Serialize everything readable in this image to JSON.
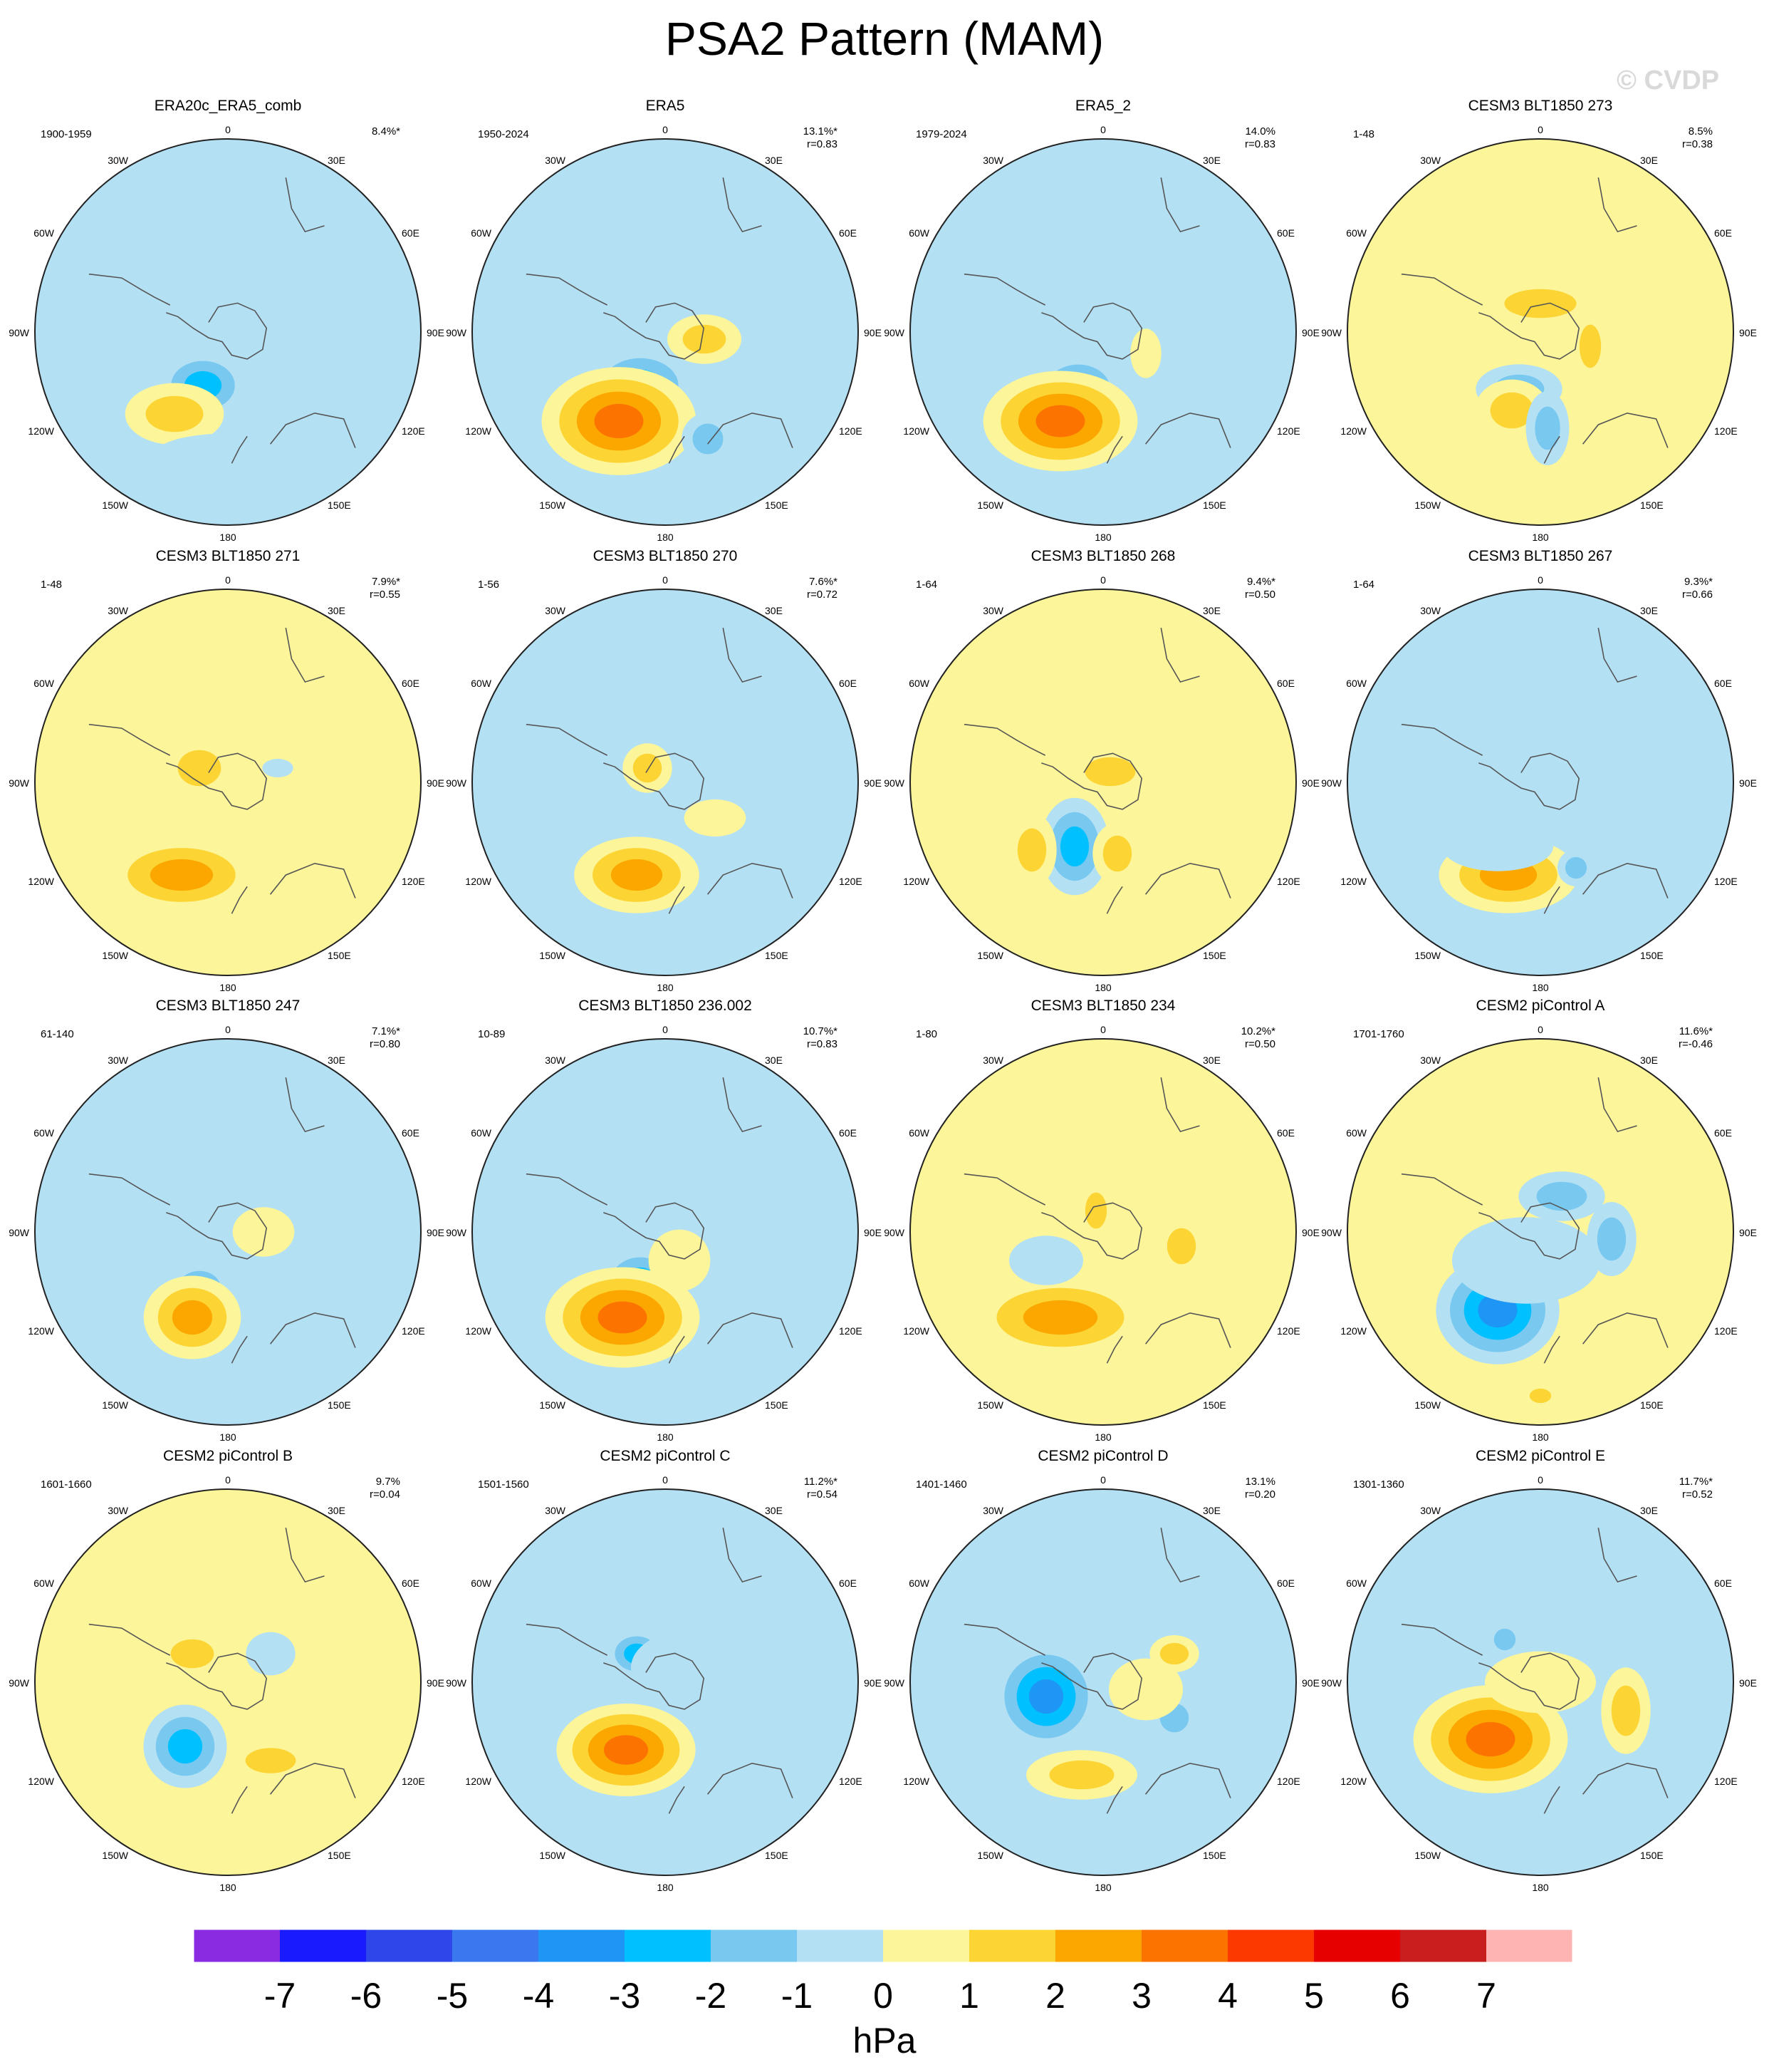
{
  "title": "PSA2 Pattern (MAM)",
  "watermark": "© CVDP",
  "colorbar": {
    "unit": "hPa",
    "tick_labels": [
      "-7",
      "-6",
      "-5",
      "-4",
      "-3",
      "-2",
      "-1",
      "0",
      "1",
      "2",
      "3",
      "4",
      "5",
      "6",
      "7"
    ],
    "colors": [
      "#8a2be2",
      "#1a1aff",
      "#2f47e8",
      "#3a78f0",
      "#1e96f5",
      "#00c0ff",
      "#78c8f0",
      "#b4e0f4",
      "#fcf59a",
      "#fcd535",
      "#fca700",
      "#fc7300",
      "#fc3a00",
      "#e60000",
      "#c81e1e",
      "#ffb4b4"
    ]
  },
  "map_labels": {
    "top": "0",
    "bottom": "180",
    "left": "90W",
    "right": "90E",
    "ul1": "30W",
    "ul2": "60W",
    "ur1": "30E",
    "ur2": "60E",
    "ll1": "120W",
    "ll2": "150W",
    "lr1": "120E",
    "lr2": "150E"
  },
  "chart_data": [
    {
      "type": "heatmap",
      "title": "ERA20c_ERA5_comb",
      "period": "1900-1959",
      "pct": "8.4%*",
      "r": "",
      "blobs": [
        [
          -35,
          -75,
          0.13,
          0.1,
          1.8,
          -3
        ],
        [
          -75,
          -115,
          0.16,
          0.1,
          1.6,
          2
        ],
        [
          75,
          -20,
          0.06,
          0.04,
          1.6,
          -1
        ],
        [
          0,
          -170,
          0.22,
          0.06,
          1.7,
          -1
        ]
      ],
      "base": -1
    },
    {
      "type": "heatmap",
      "title": "ERA5",
      "period": "1950-2024",
      "pct": "13.1%*",
      "r": "r=0.83",
      "blobs": [
        [
          -35,
          -75,
          0.14,
          0.1,
          2.0,
          -3
        ],
        [
          -65,
          -125,
          0.2,
          0.14,
          2.0,
          4
        ],
        [
          55,
          -10,
          0.12,
          0.08,
          1.6,
          2
        ],
        [
          60,
          -150,
          0.08,
          0.08,
          1.7,
          -2
        ]
      ],
      "base": -1
    },
    {
      "type": "heatmap",
      "title": "ERA5_2",
      "period": "1979-2024",
      "pct": "14.0%",
      "r": "r=0.83",
      "blobs": [
        [
          -35,
          -80,
          0.13,
          0.1,
          1.8,
          -3
        ],
        [
          -60,
          -125,
          0.2,
          0.13,
          2.0,
          4
        ],
        [
          60,
          -30,
          0.05,
          0.08,
          1.6,
          1
        ]
      ],
      "base": -1
    },
    {
      "type": "heatmap",
      "title": "CESM3 BLT1850 273",
      "period": "1-48",
      "pct": "8.5%",
      "r": "r=0.38",
      "blobs": [
        [
          0,
          40,
          0.2,
          0.08,
          1.6,
          2
        ],
        [
          -30,
          -80,
          0.14,
          0.08,
          1.6,
          -2
        ],
        [
          -40,
          -110,
          0.12,
          0.1,
          1.6,
          2
        ],
        [
          10,
          -135,
          0.07,
          0.12,
          1.6,
          -2
        ],
        [
          70,
          -20,
          0.06,
          0.12,
          1.6,
          2
        ]
      ],
      "base": 0
    },
    {
      "type": "heatmap",
      "title": "CESM3 BLT1850 271",
      "period": "1-48",
      "pct": "7.9%*",
      "r": "r=0.55",
      "blobs": [
        [
          -40,
          20,
          0.12,
          0.1,
          1.6,
          2
        ],
        [
          -65,
          -130,
          0.22,
          0.11,
          1.8,
          3
        ],
        [
          70,
          20,
          0.05,
          0.03,
          1.6,
          -1
        ]
      ],
      "base": 0
    },
    {
      "type": "heatmap",
      "title": "CESM3 BLT1850 270",
      "period": "1-56",
      "pct": "7.6%*",
      "r": "r=0.72",
      "blobs": [
        [
          -25,
          20,
          0.08,
          0.08,
          1.6,
          2
        ],
        [
          -30,
          -100,
          0.07,
          0.07,
          1.6,
          -2
        ],
        [
          -40,
          -130,
          0.18,
          0.11,
          1.8,
          3
        ],
        [
          70,
          -50,
          0.1,
          0.06,
          1.6,
          1
        ]
      ],
      "base": -1
    },
    {
      "type": "heatmap",
      "title": "CESM3 BLT1850 268",
      "period": "1-64",
      "pct": "9.4%*",
      "r": "r=0.50",
      "blobs": [
        [
          -40,
          -90,
          0.1,
          0.14,
          1.8,
          -3
        ],
        [
          -100,
          -95,
          0.08,
          0.12,
          1.6,
          2
        ],
        [
          10,
          15,
          0.14,
          0.08,
          1.6,
          2
        ],
        [
          20,
          -100,
          0.08,
          0.1,
          1.6,
          2
        ]
      ],
      "base": 0
    },
    {
      "type": "heatmap",
      "title": "CESM3 BLT1850 267",
      "period": "1-64",
      "pct": "9.3%*",
      "r": "r=0.66",
      "blobs": [
        [
          -45,
          -130,
          0.2,
          0.11,
          1.8,
          3
        ],
        [
          50,
          -120,
          0.06,
          0.06,
          1.6,
          -2
        ],
        [
          -60,
          -90,
          0.18,
          0.08,
          1.6,
          -1
        ]
      ],
      "base": -1
    },
    {
      "type": "heatmap",
      "title": "CESM3 BLT1850 247",
      "period": "61-140",
      "pct": "7.1%*",
      "r": "r=0.80",
      "blobs": [
        [
          -40,
          -80,
          0.12,
          0.1,
          1.6,
          -2
        ],
        [
          -50,
          -120,
          0.14,
          0.12,
          1.8,
          3
        ],
        [
          50,
          0,
          0.1,
          0.08,
          1.6,
          1
        ]
      ],
      "base": -1
    },
    {
      "type": "heatmap",
      "title": "CESM3 BLT1850 236.002",
      "period": "10-89",
      "pct": "10.7%*",
      "r": "r=0.83",
      "blobs": [
        [
          -35,
          -70,
          0.12,
          0.1,
          1.8,
          -3
        ],
        [
          -60,
          -120,
          0.2,
          0.13,
          2.0,
          4
        ],
        [
          20,
          -40,
          0.1,
          0.1,
          1.6,
          1
        ]
      ],
      "base": -1
    },
    {
      "type": "heatmap",
      "title": "CESM3 BLT1850 234",
      "period": "1-80",
      "pct": "10.2%*",
      "r": "r=0.50",
      "blobs": [
        [
          -60,
          -120,
          0.26,
          0.12,
          1.8,
          3
        ],
        [
          60,
          -10,
          0.12,
          0.08,
          1.6,
          1
        ],
        [
          110,
          -20,
          0.08,
          0.1,
          1.6,
          2
        ],
        [
          -10,
          30,
          0.06,
          0.1,
          1.6,
          2
        ],
        [
          -80,
          -40,
          0.12,
          0.08,
          1.6,
          -1
        ]
      ],
      "base": 0
    },
    {
      "type": "heatmap",
      "title": "CESM2 piControl A",
      "period": "1701-1760",
      "pct": "11.6%*",
      "r": "r=-0.46",
      "blobs": [
        [
          -60,
          -110,
          0.16,
          0.14,
          2.0,
          -4
        ],
        [
          100,
          -10,
          0.08,
          0.12,
          1.6,
          -2
        ],
        [
          30,
          50,
          0.14,
          0.08,
          1.6,
          -2
        ],
        [
          0,
          -230,
          0.06,
          0.04,
          1.6,
          2
        ],
        [
          -20,
          -40,
          0.24,
          0.14,
          1.6,
          -1
        ]
      ],
      "base": 0
    },
    {
      "type": "heatmap",
      "title": "CESM2 piControl B",
      "period": "1601-1660",
      "pct": "9.7%",
      "r": "r=0.04",
      "blobs": [
        [
          -60,
          -90,
          0.12,
          0.12,
          1.8,
          -3
        ],
        [
          -50,
          40,
          0.12,
          0.08,
          1.6,
          2
        ],
        [
          60,
          -110,
          0.14,
          0.07,
          1.6,
          2
        ],
        [
          60,
          40,
          0.08,
          0.07,
          1.6,
          -1
        ],
        [
          40,
          -20,
          0.08,
          0.06,
          1.6,
          1
        ]
      ],
      "base": 0
    },
    {
      "type": "heatmap",
      "title": "CESM2 piControl C",
      "period": "1501-1560",
      "pct": "11.2%*",
      "r": "r=0.54",
      "blobs": [
        [
          -55,
          -95,
          0.18,
          0.12,
          2.0,
          4
        ],
        [
          -40,
          40,
          0.1,
          0.08,
          1.6,
          -3
        ],
        [
          30,
          20,
          0.18,
          0.12,
          1.6,
          -1
        ],
        [
          -40,
          -200,
          0.06,
          0.04,
          1.6,
          -1
        ]
      ],
      "base": -1
    },
    {
      "type": "heatmap",
      "title": "CESM2 piControl D",
      "period": "1401-1460",
      "pct": "13.1%",
      "r": "r=0.20",
      "blobs": [
        [
          -80,
          -20,
          0.14,
          0.14,
          2.0,
          -4
        ],
        [
          -30,
          -130,
          0.18,
          0.08,
          1.6,
          2
        ],
        [
          100,
          -50,
          0.08,
          0.08,
          1.6,
          -2
        ],
        [
          100,
          40,
          0.08,
          0.06,
          1.6,
          2
        ],
        [
          60,
          -10,
          0.12,
          0.1,
          1.6,
          1
        ]
      ],
      "base": -1
    },
    {
      "type": "heatmap",
      "title": "CESM2 piControl E",
      "period": "1301-1360",
      "pct": "11.7%*",
      "r": "r=0.52",
      "blobs": [
        [
          -70,
          -80,
          0.2,
          0.14,
          2.0,
          4
        ],
        [
          120,
          -40,
          0.08,
          0.14,
          1.6,
          2
        ],
        [
          -50,
          60,
          0.06,
          0.06,
          1.6,
          -2
        ],
        [
          0,
          0,
          0.18,
          0.1,
          1.6,
          1
        ]
      ],
      "base": -1
    }
  ]
}
